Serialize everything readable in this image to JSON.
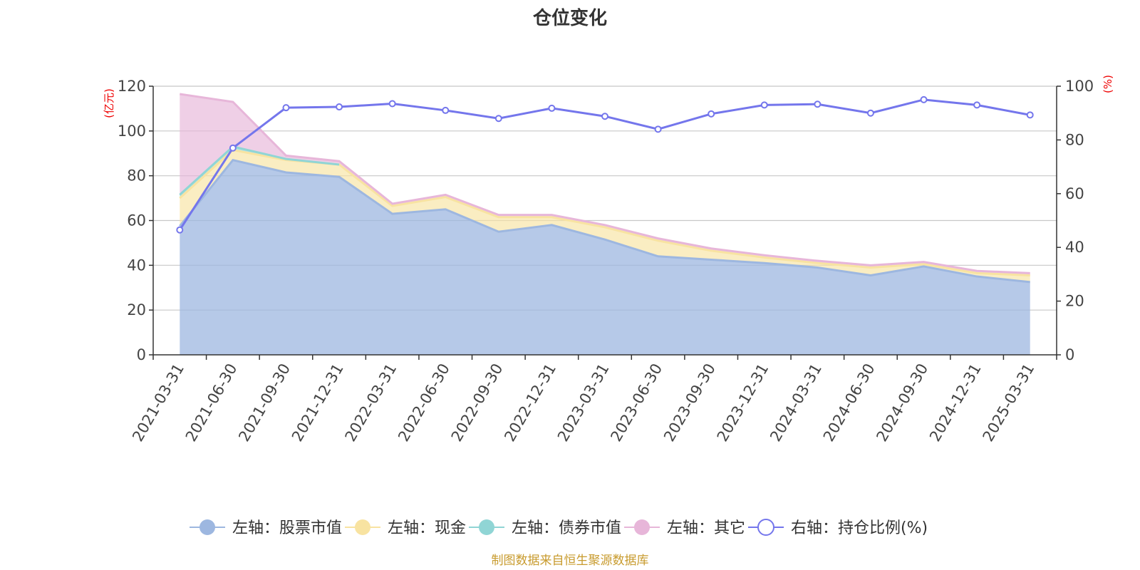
{
  "chart_data": {
    "type": "area",
    "title": "仓位变化",
    "left_axis_unit": "(亿元)",
    "right_axis_unit": "(%)",
    "categories": [
      "2021-03-31",
      "2021-06-30",
      "2021-09-30",
      "2021-12-31",
      "2022-03-31",
      "2022-06-30",
      "2022-09-30",
      "2022-12-31",
      "2023-03-31",
      "2023-06-30",
      "2023-09-30",
      "2023-12-31",
      "2024-03-31",
      "2024-06-30",
      "2024-09-30",
      "2024-12-31",
      "2025-03-31"
    ],
    "left_ylim": [
      0,
      120
    ],
    "left_yticks": [
      0,
      20,
      40,
      60,
      80,
      100,
      120
    ],
    "right_ylim": [
      0,
      100
    ],
    "right_yticks": [
      0,
      20,
      40,
      60,
      80,
      100
    ],
    "series": [
      {
        "name": "左轴：股票市值",
        "axis": "left",
        "stacked": true,
        "color": "#9db7e0",
        "values": [
          57.5,
          87,
          81.5,
          79.5,
          63,
          65,
          55,
          58,
          51.5,
          44,
          42.5,
          41,
          39,
          35.5,
          39.5,
          35,
          32.5
        ]
      },
      {
        "name": "左轴：现金",
        "axis": "left",
        "stacked": true,
        "color": "#f8e3a1",
        "values": [
          12.5,
          4.5,
          5.5,
          5.5,
          3.5,
          5.5,
          6.5,
          3.5,
          5.5,
          7,
          4,
          2.5,
          2,
          3.5,
          1,
          1.5,
          3
        ]
      },
      {
        "name": "左轴：债券市值",
        "axis": "left",
        "stacked": true,
        "color": "#90d5d5",
        "values": [
          1.5,
          1.5,
          0.5,
          0,
          0,
          0,
          0,
          0,
          0,
          0,
          0,
          0,
          0,
          0,
          0,
          0,
          0
        ]
      },
      {
        "name": "左轴：其它",
        "axis": "left",
        "stacked": true,
        "color": "#e7b6d9",
        "values": [
          45,
          20,
          1.5,
          1.5,
          1,
          1,
          1,
          1,
          1,
          1,
          1,
          1,
          1,
          1,
          1,
          1,
          1
        ]
      },
      {
        "name": "右轴：持仓比例(%)",
        "axis": "right",
        "stacked": false,
        "color": "#7476ec",
        "values": [
          46.5,
          77,
          92,
          92.3,
          93.5,
          91,
          88,
          91.8,
          88.8,
          84,
          89.7,
          93,
          93.3,
          90,
          95,
          93,
          89.3
        ]
      }
    ],
    "grid": true,
    "legend_position": "bottom"
  },
  "footer": {
    "source": "制图数据来自恒生聚源数据库"
  }
}
